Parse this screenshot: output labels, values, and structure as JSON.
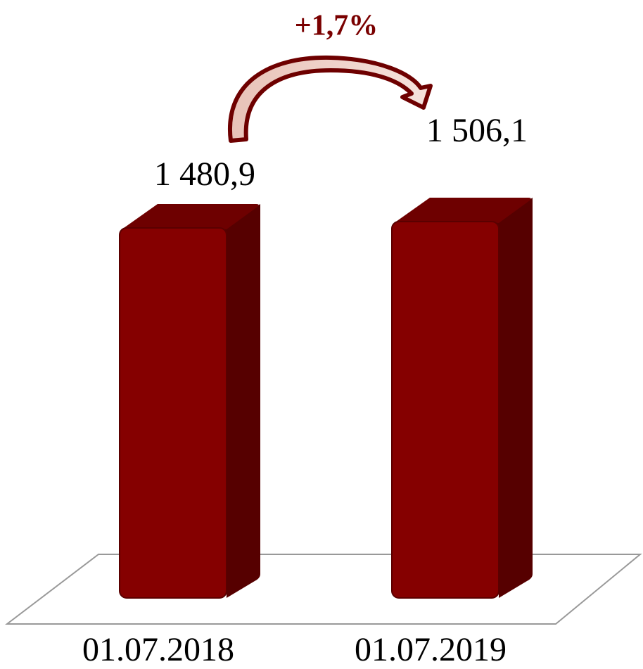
{
  "chart_data": {
    "type": "bar",
    "categories": [
      "01.07.2018",
      "01.07.2019"
    ],
    "values": [
      1480.9,
      1506.1
    ],
    "value_labels": [
      "1 480,9",
      "1 506,1"
    ],
    "color": "#850000",
    "annotation": "+1,7%"
  }
}
